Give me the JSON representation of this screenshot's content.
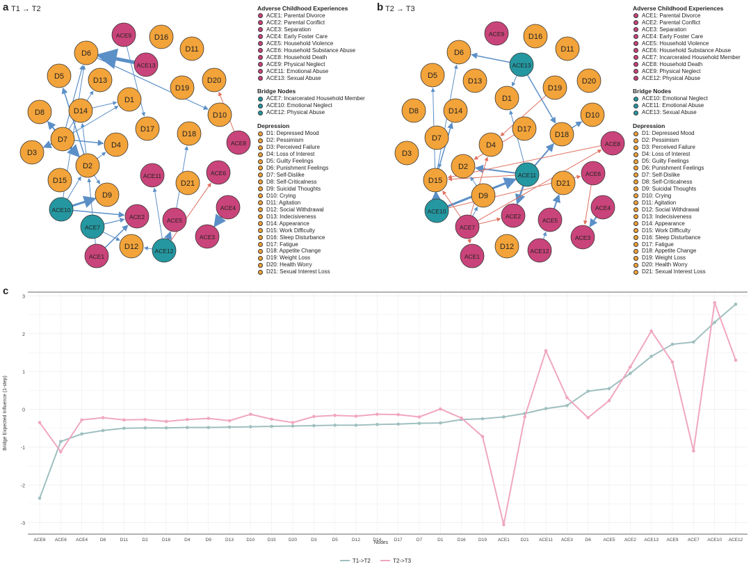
{
  "panels": {
    "a_label": "a",
    "a_title": "T1 → T2",
    "b_label": "b",
    "b_title": "T2 → T3",
    "c_label": "c"
  },
  "colors": {
    "ace": "#c9447a",
    "depression": "#f2a33a",
    "bridge": "#2597a0",
    "edge_pos": "#5b8fc7",
    "edge_neg": "#e07060",
    "t1": "#9fbfbf",
    "t2": "#f0a6c0"
  },
  "network_a": {
    "nodes": [
      "ACE9",
      "D16",
      "D11",
      "D6",
      "ACE13",
      "D5",
      "D13",
      "D1",
      "D20",
      "D19",
      "D8",
      "D14",
      "D10",
      "D7",
      "D17",
      "D18",
      "D3",
      "D4",
      "ACE8",
      "D2",
      "ACE11",
      "ACE6",
      "D15",
      "D21",
      "D9",
      "ACE4",
      "ACE10",
      "ACE2",
      "ACE5",
      "ACE7",
      "ACE3",
      "D12",
      "ACE1",
      "ACE12"
    ]
  },
  "network_b": {
    "nodes": [
      "ACE9",
      "D16",
      "D11",
      "D6",
      "ACE13",
      "D5",
      "D13",
      "D20",
      "D1",
      "D19",
      "D8",
      "D14",
      "D10",
      "D17",
      "D7",
      "D18",
      "D4",
      "ACE8",
      "D3",
      "D2",
      "ACE11",
      "ACE6",
      "D15",
      "D21",
      "D9",
      "ACE4",
      "ACE10",
      "ACE2",
      "ACE5",
      "ACE7",
      "ACE3",
      "D12",
      "ACE1",
      "ACE12"
    ]
  },
  "legend_a": {
    "ace_title": "Adverse Childhood Experiences",
    "ace_items": [
      "ACE1: Parental Divorce",
      "ACE2: Parental Conflict",
      "ACE3: Separation",
      "ACE4: Early Foster Care",
      "ACE5: Household Violence",
      "ACE6: Household Substance Abuse",
      "ACE8: Household Death",
      "ACE9: Physical Neglect",
      "ACE11: Emotional Abuse",
      "ACE13: Sexual Abuse"
    ],
    "bridge_title": "Bridge Nodes",
    "bridge_items": [
      "ACE7: Incarcerated Household Member",
      "ACE10: Emotional Neglect",
      "ACE12: Physical Abuse"
    ],
    "dep_title": "Depression",
    "dep_items": [
      "D1: Depressed Mood",
      "D2: Pessimism",
      "D3: Perceived Failure",
      "D4: Loss of Interest",
      "D5: Guilty Feelings",
      "D6: Punishment Feelings",
      "D7: Self-Dislike",
      "D8: Self-Criticalness",
      "D9: Suicidal Thoughts",
      "D10: Crying",
      "D11: Agitation",
      "D12: Social Withdrawal",
      "D13: Indecisiveness",
      "D14: Appearance",
      "D15: Work Difficulty",
      "D16: Sleep Disturbance",
      "D17: Fatigue",
      "D18: Appetite Change",
      "D19: Weight Loss",
      "D20: Health Worry",
      "D21: Sexual Interest Loss"
    ]
  },
  "legend_b": {
    "ace_title": "Adverse Childhood Experiences",
    "ace_items": [
      "ACE1: Parental Divorce",
      "ACE2: Parental Conflict",
      "ACE3: Separation",
      "ACE4: Early Foster Care",
      "ACE5: Household Violence",
      "ACE6: Household Substance Abuse",
      "ACE7: Incarcerated Household Member",
      "ACE8: Household Death",
      "ACE9: Physical Neglect",
      "ACE12: Physical Abuse"
    ],
    "bridge_title": "Bridge Nodes",
    "bridge_items": [
      "ACE10: Emotional Neglect",
      "ACE11: Emotional Abuse",
      "ACE13: Sexual Abuse"
    ],
    "dep_title": "Depression",
    "dep_items": [
      "D1: Depressed Mood",
      "D2: Pessimism",
      "D3: Perceived Failure",
      "D4: Loss of Interest",
      "D5: Guilty Feelings",
      "D6: Punishment Feelings",
      "D7: Self-Dislike",
      "D8: Self-Criticalness",
      "D9: Suicidal Thoughts",
      "D10: Crying",
      "D11: Agitation",
      "D12: Social Withdrawal",
      "D13: Indecisiveness",
      "D14: Appearance",
      "D15: Work Difficulty",
      "D16: Sleep Disturbance",
      "D17: Fatigue",
      "D18: Appetite Change",
      "D19: Weight Loss",
      "D20: Health Worry",
      "D21: Sexual Interest Loss"
    ]
  },
  "chart_data": {
    "type": "line",
    "xlabel": "Nodes",
    "ylabel": "Bridge Expected Influence (1-step)",
    "ylim": [
      -3.3,
      3.1
    ],
    "yticks": [
      -3,
      -2,
      -1,
      0,
      1,
      2,
      3
    ],
    "categories": [
      "ACE8",
      "ACE6",
      "ACE4",
      "D8",
      "D11",
      "D2",
      "D18",
      "D4",
      "D9",
      "D13",
      "D10",
      "D15",
      "D20",
      "D3",
      "D5",
      "D12",
      "D14",
      "D17",
      "D7",
      "D1",
      "D16",
      "D19",
      "ACE1",
      "D21",
      "ACE11",
      "ACE3",
      "D6",
      "ACE5",
      "ACE2",
      "ACE13",
      "ACE9",
      "ACE7",
      "ACE10",
      "ACE12"
    ],
    "series": [
      {
        "name": "T1->T2",
        "values": [
          -2.35,
          -0.85,
          -0.65,
          -0.56,
          -0.5,
          -0.49,
          -0.49,
          -0.48,
          -0.48,
          -0.47,
          -0.46,
          -0.45,
          -0.44,
          -0.43,
          -0.42,
          -0.42,
          -0.4,
          -0.39,
          -0.37,
          -0.36,
          -0.27,
          -0.25,
          -0.2,
          -0.11,
          0.02,
          0.1,
          0.48,
          0.55,
          0.95,
          1.4,
          1.72,
          1.78,
          2.3,
          2.78
        ]
      },
      {
        "name": "T2->T3",
        "values": [
          -0.35,
          -1.12,
          -0.28,
          -0.22,
          -0.28,
          -0.27,
          -0.32,
          -0.27,
          -0.24,
          -0.3,
          -0.13,
          -0.26,
          -0.35,
          -0.19,
          -0.16,
          -0.18,
          -0.13,
          -0.14,
          -0.2,
          0.01,
          -0.23,
          -0.72,
          -3.05,
          -0.2,
          1.55,
          0.31,
          -0.22,
          0.23,
          1.12,
          2.07,
          1.25,
          -1.1,
          2.82,
          1.3
        ]
      }
    ]
  }
}
